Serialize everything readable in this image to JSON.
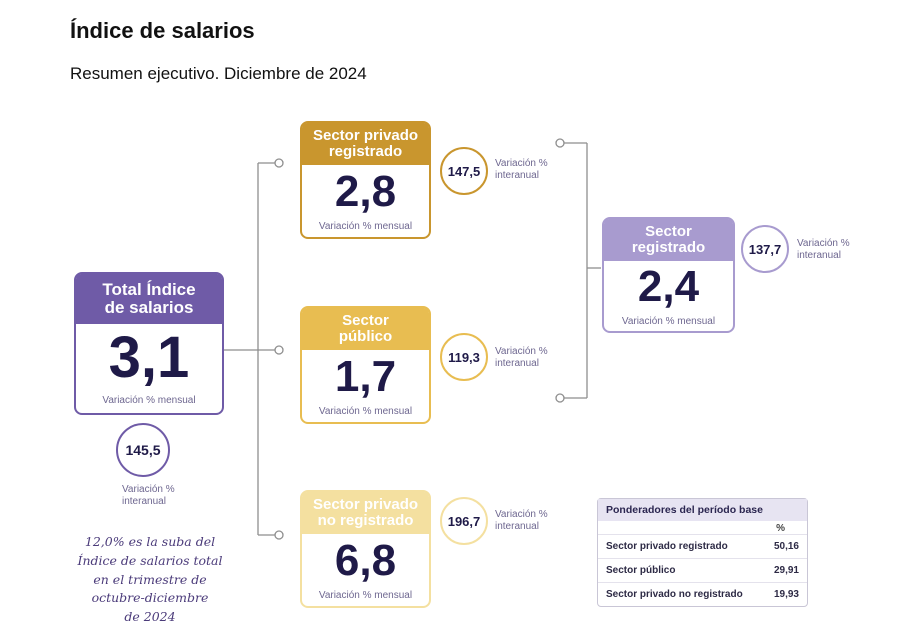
{
  "header": {
    "title": "Índice de salarios",
    "subtitle": "Resumen ejecutivo. Diciembre de 2024"
  },
  "colors": {
    "total": "#6f5ba7",
    "privado": "#c9962e",
    "publico": "#e8bd51",
    "no_registrado": "#f4e0a0",
    "registrado": "#a89bcf"
  },
  "total": {
    "head_line1": "Total Índice",
    "head_line2": "de salarios",
    "value": "3,1",
    "foot": "Variación % mensual",
    "interanual": "145,5",
    "interanual_label_1": "Variación %",
    "interanual_label_2": "interanual"
  },
  "privado": {
    "head_line1": "Sector privado",
    "head_line2": "registrado",
    "value": "2,8",
    "foot": "Variación % mensual",
    "interanual": "147,5",
    "interanual_label_1": "Variación %",
    "interanual_label_2": "interanual"
  },
  "publico": {
    "head_line1": "Sector",
    "head_line2": "público",
    "value": "1,7",
    "foot": "Variación % mensual",
    "interanual": "119,3",
    "interanual_label_1": "Variación %",
    "interanual_label_2": "interanual"
  },
  "no_registrado": {
    "head_line1": "Sector privado",
    "head_line2": "no registrado",
    "value": "6,8",
    "foot": "Variación % mensual",
    "interanual": "196,7",
    "interanual_label_1": "Variación %",
    "interanual_label_2": "interanual"
  },
  "registrado": {
    "head_line1": "Sector",
    "head_line2": "registrado",
    "value": "2,4",
    "foot": "Variación % mensual",
    "interanual": "137,7",
    "interanual_label_1": "Variación %",
    "interanual_label_2": "interanual"
  },
  "note": {
    "line1": "12,0% es la suba del",
    "line2": "Índice de salarios total",
    "line3": "en el trimestre de",
    "line4": "octubre-diciembre",
    "line5": "de 2024"
  },
  "ponderadores": {
    "title": "Ponderadores del período base",
    "col": "%",
    "rows": [
      {
        "label": "Sector privado registrado",
        "value": "50,16"
      },
      {
        "label": "Sector público",
        "value": "29,91"
      },
      {
        "label": "Sector privado no registrado",
        "value": "19,93"
      }
    ]
  }
}
